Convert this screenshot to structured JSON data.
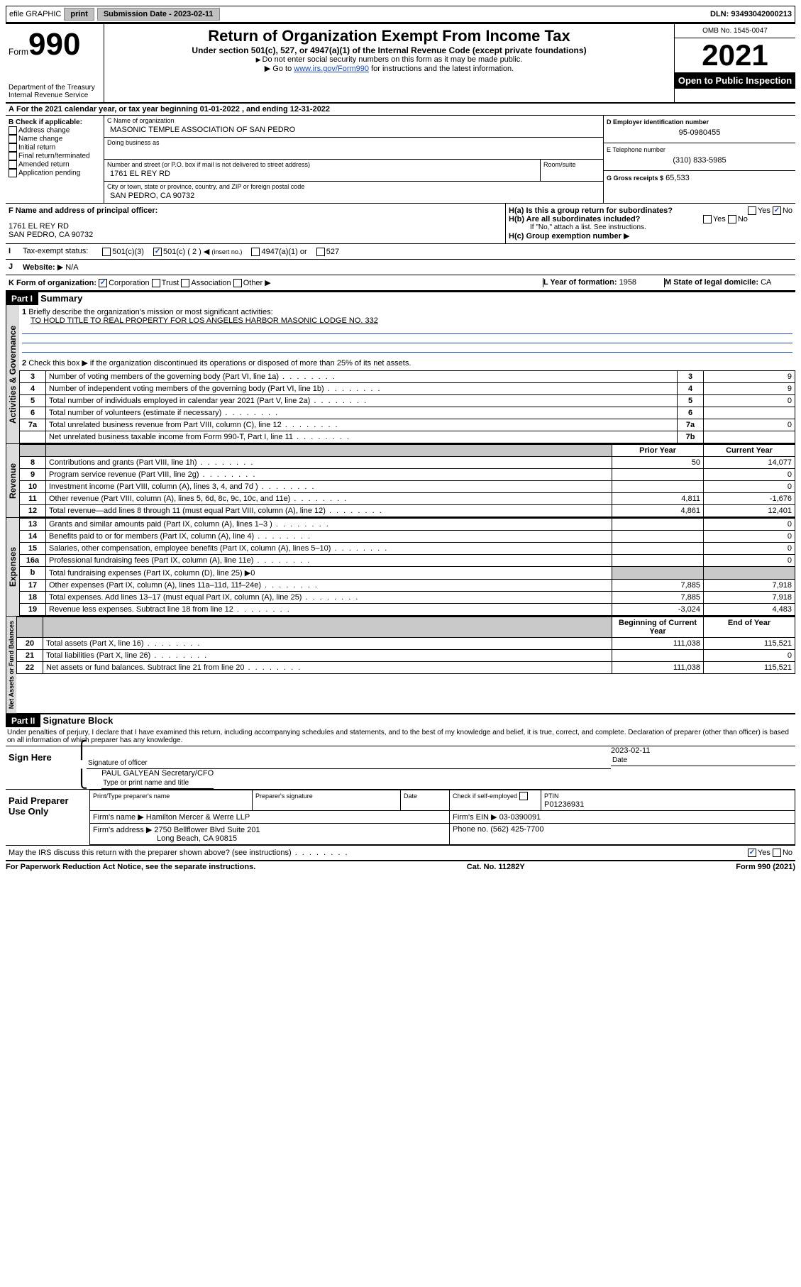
{
  "topbar": {
    "efile_label": "efile GRAPHIC",
    "print_btn": "print",
    "submission_btn": "Submission Date - 2023-02-11",
    "dln_label": "DLN: 93493042000213"
  },
  "header": {
    "form_text": "Form",
    "form_num": "990",
    "title": "Return of Organization Exempt From Income Tax",
    "subtitle": "Under section 501(c), 527, or 4947(a)(1) of the Internal Revenue Code (except private foundations)",
    "instr1": "Do not enter social security numbers on this form as it may be made public.",
    "instr2_pre": "Go to ",
    "instr2_link": "www.irs.gov/Form990",
    "instr2_post": " for instructions and the latest information.",
    "dept": "Department of the Treasury",
    "irs": "Internal Revenue Service",
    "omb": "OMB No. 1545-0047",
    "year": "2021",
    "open": "Open to Public Inspection"
  },
  "lineA": "For the 2021 calendar year, or tax year beginning 01-01-2022  , and ending 12-31-2022",
  "B": {
    "label": "B Check if applicable:",
    "items": [
      "Address change",
      "Name change",
      "Initial return",
      "Final return/terminated",
      "Amended return",
      "Application pending"
    ]
  },
  "C": {
    "name_lbl": "C Name of organization",
    "name": "MASONIC TEMPLE ASSOCIATION OF SAN PEDRO",
    "dba_lbl": "Doing business as",
    "addr_lbl": "Number and street (or P.O. box if mail is not delivered to street address)",
    "room_lbl": "Room/suite",
    "addr": "1761 EL REY RD",
    "city_lbl": "City or town, state or province, country, and ZIP or foreign postal code",
    "city": "SAN PEDRO, CA  90732"
  },
  "D": {
    "lbl": "D Employer identification number",
    "val": "95-0980455"
  },
  "E": {
    "lbl": "E Telephone number",
    "val": "(310) 833-5985"
  },
  "G": {
    "lbl": "G Gross receipts $",
    "val": "65,533"
  },
  "F": {
    "lbl": "F Name and address of principal officer:",
    "addr1": "1761 EL REY RD",
    "addr2": "SAN PEDRO, CA  90732"
  },
  "H": {
    "a_lbl": "H(a)  Is this a group return for subordinates?",
    "yes": "Yes",
    "no": "No",
    "b_lbl": "H(b)  Are all subordinates included?",
    "b_note": "If \"No,\" attach a list. See instructions.",
    "c_lbl": "H(c)  Group exemption number"
  },
  "I": {
    "lbl": "Tax-exempt status:",
    "o1": "501(c)(3)",
    "o2": "501(c) ( 2 )",
    "o2_note": "(insert no.)",
    "o3": "4947(a)(1) or",
    "o4": "527"
  },
  "J": {
    "lbl": "Website:",
    "val": "N/A"
  },
  "K": {
    "lbl": "K Form of organization:",
    "o1": "Corporation",
    "o2": "Trust",
    "o3": "Association",
    "o4": "Other"
  },
  "L": {
    "lbl": "L Year of formation:",
    "val": "1958"
  },
  "M": {
    "lbl": "M State of legal domicile:",
    "val": "CA"
  },
  "part1": {
    "hdr": "Part I",
    "title": "Summary"
  },
  "summary": {
    "q1": "Briefly describe the organization's mission or most significant activities:",
    "q1_val": "TO HOLD TITLE TO REAL PROPERTY FOR LOS ANGELES HARBOR MASONIC LODGE NO. 332",
    "q2": "Check this box ▶      if the organization discontinued its operations or disposed of more than 25% of its net assets.",
    "rows_ag": [
      {
        "n": "3",
        "t": "Number of voting members of the governing body (Part VI, line 1a)",
        "c": "3",
        "v": "9"
      },
      {
        "n": "4",
        "t": "Number of independent voting members of the governing body (Part VI, line 1b)",
        "c": "4",
        "v": "9"
      },
      {
        "n": "5",
        "t": "Total number of individuals employed in calendar year 2021 (Part V, line 2a)",
        "c": "5",
        "v": "0"
      },
      {
        "n": "6",
        "t": "Total number of volunteers (estimate if necessary)",
        "c": "6",
        "v": ""
      },
      {
        "n": "7a",
        "t": "Total unrelated business revenue from Part VIII, column (C), line 12",
        "c": "7a",
        "v": "0"
      },
      {
        "n": "",
        "t": "Net unrelated business taxable income from Form 990-T, Part I, line 11",
        "c": "7b",
        "v": ""
      }
    ],
    "prior_lbl": "Prior Year",
    "curr_lbl": "Current Year",
    "revenue": [
      {
        "n": "8",
        "t": "Contributions and grants (Part VIII, line 1h)",
        "p": "50",
        "c": "14,077"
      },
      {
        "n": "9",
        "t": "Program service revenue (Part VIII, line 2g)",
        "p": "",
        "c": "0"
      },
      {
        "n": "10",
        "t": "Investment income (Part VIII, column (A), lines 3, 4, and 7d )",
        "p": "",
        "c": "0"
      },
      {
        "n": "11",
        "t": "Other revenue (Part VIII, column (A), lines 5, 6d, 8c, 9c, 10c, and 11e)",
        "p": "4,811",
        "c": "-1,676"
      },
      {
        "n": "12",
        "t": "Total revenue—add lines 8 through 11 (must equal Part VIII, column (A), line 12)",
        "p": "4,861",
        "c": "12,401"
      }
    ],
    "expenses": [
      {
        "n": "13",
        "t": "Grants and similar amounts paid (Part IX, column (A), lines 1–3 )",
        "p": "",
        "c": "0"
      },
      {
        "n": "14",
        "t": "Benefits paid to or for members (Part IX, column (A), line 4)",
        "p": "",
        "c": "0"
      },
      {
        "n": "15",
        "t": "Salaries, other compensation, employee benefits (Part IX, column (A), lines 5–10)",
        "p": "",
        "c": "0"
      },
      {
        "n": "16a",
        "t": "Professional fundraising fees (Part IX, column (A), line 11e)",
        "p": "",
        "c": "0"
      },
      {
        "n": "b",
        "t": "Total fundraising expenses (Part IX, column (D), line 25) ▶0",
        "shade": true
      },
      {
        "n": "17",
        "t": "Other expenses (Part IX, column (A), lines 11a–11d, 11f–24e)",
        "p": "7,885",
        "c": "7,918"
      },
      {
        "n": "18",
        "t": "Total expenses. Add lines 13–17 (must equal Part IX, column (A), line 25)",
        "p": "7,885",
        "c": "7,918"
      },
      {
        "n": "19",
        "t": "Revenue less expenses. Subtract line 18 from line 12",
        "p": "-3,024",
        "c": "4,483"
      }
    ],
    "begin_lbl": "Beginning of Current Year",
    "end_lbl": "End of Year",
    "netassets": [
      {
        "n": "20",
        "t": "Total assets (Part X, line 16)",
        "p": "111,038",
        "c": "115,521"
      },
      {
        "n": "21",
        "t": "Total liabilities (Part X, line 26)",
        "p": "",
        "c": "0"
      },
      {
        "n": "22",
        "t": "Net assets or fund balances. Subtract line 21 from line 20",
        "p": "111,038",
        "c": "115,521"
      }
    ]
  },
  "side_labels": {
    "ag": "Activities & Governance",
    "rev": "Revenue",
    "exp": "Expenses",
    "net": "Net Assets or Fund Balances"
  },
  "part2": {
    "hdr": "Part II",
    "title": "Signature Block"
  },
  "sig": {
    "penalty": "Under penalties of perjury, I declare that I have examined this return, including accompanying schedules and statements, and to the best of my knowledge and belief, it is true, correct, and complete. Declaration of preparer (other than officer) is based on all information of which preparer has any knowledge.",
    "sign_here": "Sign Here",
    "sig_off": "Signature of officer",
    "date_lbl": "Date",
    "date": "2023-02-11",
    "name": "PAUL GALYEAN  Secretary/CFO",
    "name_lbl": "Type or print name and title",
    "paid": "Paid Preparer Use Only",
    "prep_name_lbl": "Print/Type preparer's name",
    "prep_sig_lbl": "Preparer's signature",
    "prep_date_lbl": "Date",
    "check_lbl": "Check        if self-employed",
    "ptin_lbl": "PTIN",
    "ptin": "P01236931",
    "firm_name_lbl": "Firm's name   ▶",
    "firm_name": "Hamilton Mercer & Werre LLP",
    "firm_ein_lbl": "Firm's EIN ▶",
    "firm_ein": "03-0390091",
    "firm_addr_lbl": "Firm's address ▶",
    "firm_addr": "2750 Bellflower Blvd Suite 201",
    "firm_city": "Long Beach, CA  90815",
    "phone_lbl": "Phone no.",
    "phone": "(562) 425-7700",
    "discuss": "May the IRS discuss this return with the preparer shown above? (see instructions)",
    "yes": "Yes",
    "no": "No"
  },
  "footer": {
    "left": "For Paperwork Reduction Act Notice, see the separate instructions.",
    "mid": "Cat. No. 11282Y",
    "right": "Form 990 (2021)"
  }
}
